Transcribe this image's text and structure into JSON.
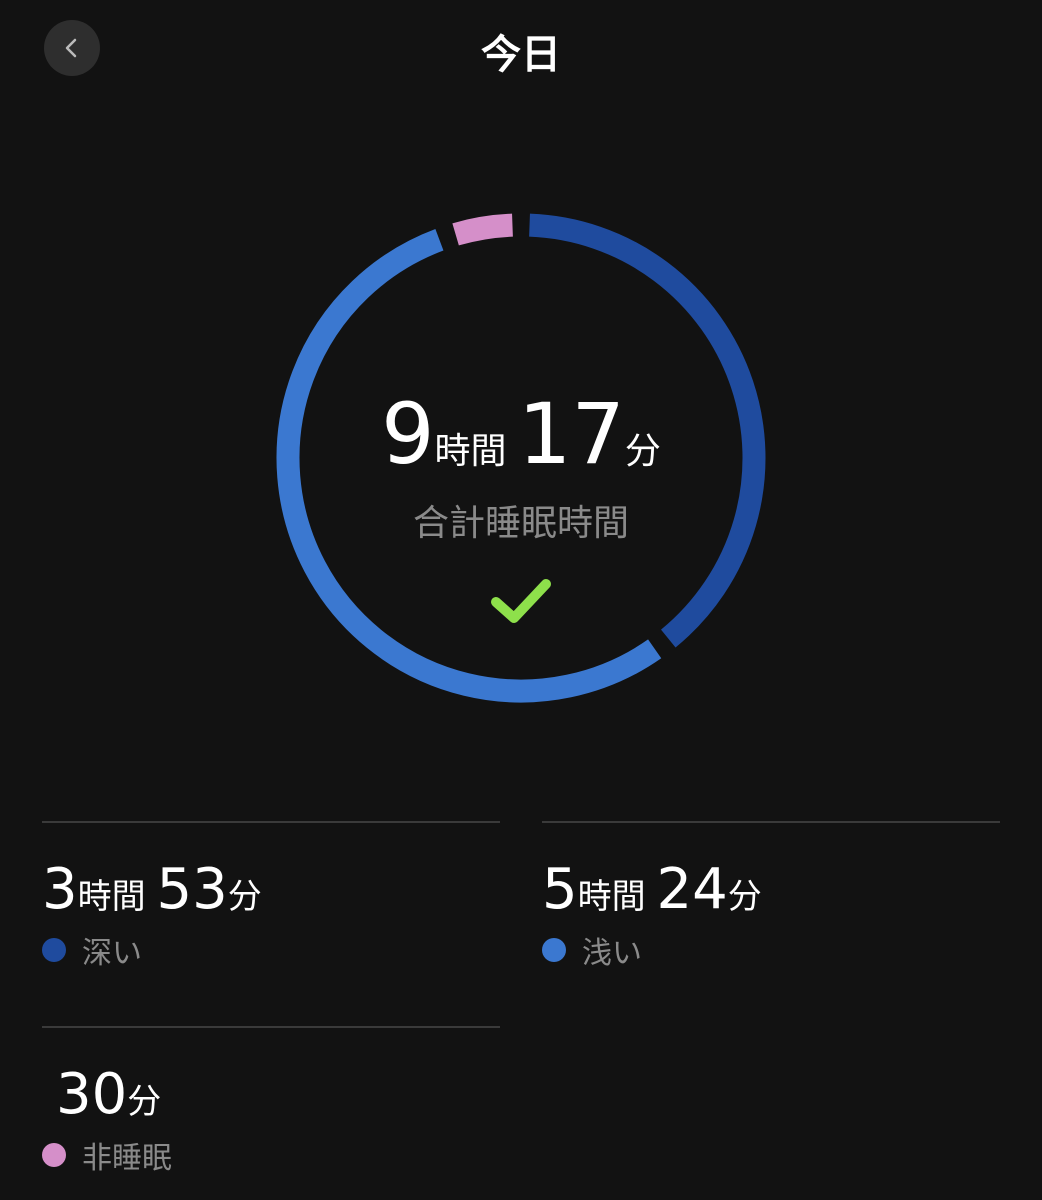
{
  "header": {
    "title": "今日",
    "back_icon": "chevron-left-icon"
  },
  "ring": {
    "total": {
      "hours": "9",
      "hours_unit": "時間",
      "minutes": "17",
      "minutes_unit": "分"
    },
    "label": "合計睡眠時間",
    "status_icon": "checkmark-icon",
    "segments_minutes": {
      "deep": 233,
      "light": 324,
      "awake": 30
    }
  },
  "colors": {
    "deep": "#1f4b9e",
    "light": "#3b78d0",
    "awake": "#d58fc9",
    "check": "#8ee04b",
    "background": "#121212"
  },
  "stats": [
    {
      "hours": "3",
      "hours_unit": "時間",
      "minutes": "53",
      "minutes_unit": "分",
      "label": "深い"
    },
    {
      "hours": "5",
      "hours_unit": "時間",
      "minutes": "24",
      "minutes_unit": "分",
      "label": "浅い"
    },
    {
      "minutes": "30",
      "minutes_unit": "分",
      "label": "非睡眠"
    }
  ]
}
